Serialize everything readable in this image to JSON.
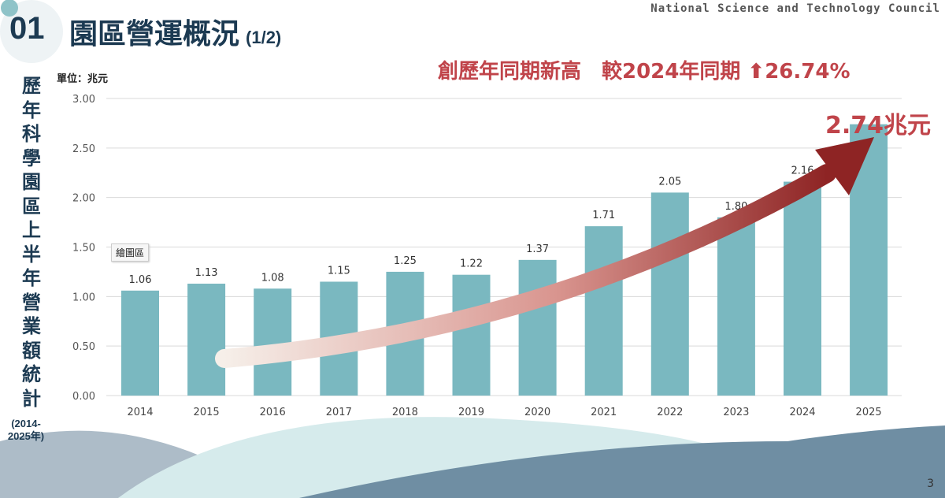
{
  "header": {
    "number": "01",
    "title": "園區營運概況",
    "subtitle": "(1/2)",
    "org": "National Science and Technology Council"
  },
  "side_title": "歷年科學園區上半年營業額統計",
  "side_range": "(2014-2025年)",
  "unit_label": "單位：兆元",
  "headline": "創歷年同期新高　較2024年同期 ⬆26.74%",
  "highlight": "2.74兆元",
  "tooltip": "繪圖區",
  "page_number": "3",
  "colors": {
    "bar": "#7ab8c0",
    "accent": "#c0444a",
    "title": "#1c3a52"
  },
  "chart_data": {
    "type": "bar",
    "categories": [
      "2014",
      "2015",
      "2016",
      "2017",
      "2018",
      "2019",
      "2020",
      "2021",
      "2022",
      "2023",
      "2024",
      "2025"
    ],
    "values": [
      1.06,
      1.13,
      1.08,
      1.15,
      1.25,
      1.22,
      1.37,
      1.71,
      2.05,
      1.8,
      2.16,
      2.74
    ],
    "data_labels": [
      "1.06",
      "1.13",
      "1.08",
      "1.15",
      "1.25",
      "1.22",
      "1.37",
      "1.71",
      "2.05",
      "1.80",
      "2.16",
      ""
    ],
    "ylim": [
      0,
      3
    ],
    "yticks": [
      "0.00",
      "0.50",
      "1.00",
      "1.50",
      "2.00",
      "2.50",
      "3.00"
    ],
    "grid": true,
    "ylabel": "單位：兆元"
  }
}
